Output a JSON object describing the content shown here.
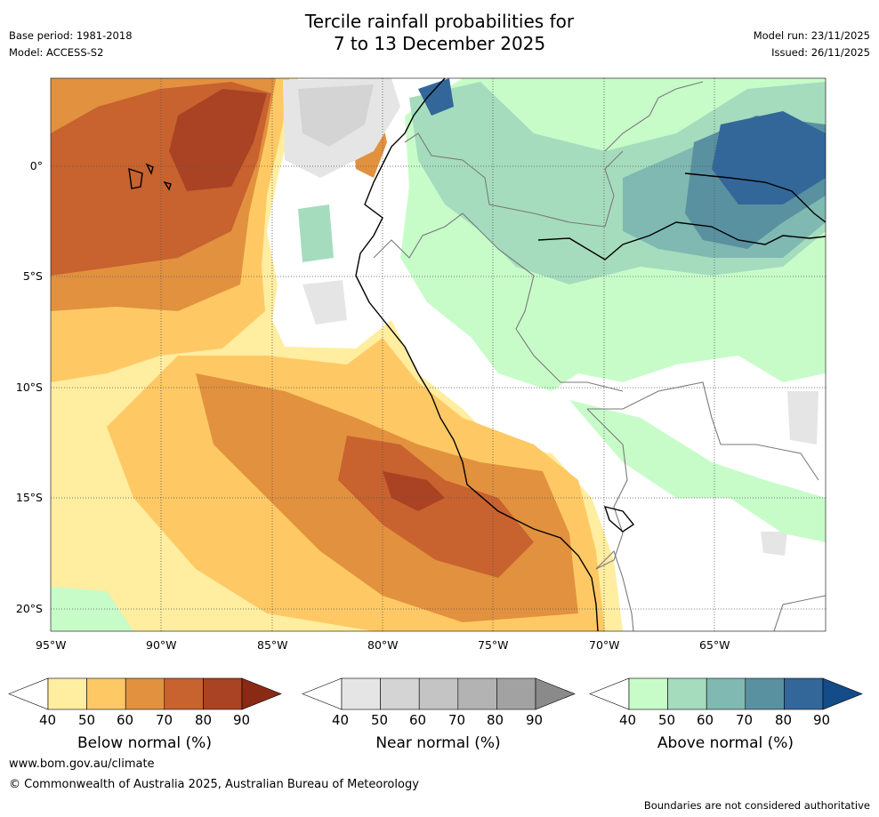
{
  "header": {
    "title_line1": "Tercile rainfall probabilities for",
    "title_line2": "7 to 13 December 2025",
    "base_period": "Base period: 1981-2018",
    "model": "Model: ACCESS-S2",
    "model_run": "Model run: 23/11/2025",
    "issued": "Issued: 26/11/2025"
  },
  "map": {
    "lon_ticks": [
      "95°W",
      "90°W",
      "85°W",
      "80°W",
      "75°W",
      "70°W",
      "65°W"
    ],
    "lat_ticks": [
      "0°",
      "5°S",
      "10°S",
      "15°S",
      "20°S"
    ],
    "extent": {
      "lon_min": -95,
      "lon_max": -60,
      "lat_max": 4,
      "lat_min": -21
    }
  },
  "legend": {
    "below": {
      "label": "Below normal (%)",
      "ticks": [
        "40",
        "50",
        "60",
        "70",
        "80",
        "90"
      ],
      "colors": [
        "#ffffff",
        "#ffeda0",
        "#fec965",
        "#e2913f",
        "#c8622f",
        "#a94323",
        "#8a2a14"
      ]
    },
    "near": {
      "label": "Near normal (%)",
      "ticks": [
        "40",
        "50",
        "60",
        "70",
        "80",
        "90"
      ],
      "colors": [
        "#ffffff",
        "#e5e5e5",
        "#d4d4d4",
        "#c4c4c4",
        "#b3b3b3",
        "#a2a2a2",
        "#8a8a8a"
      ]
    },
    "above": {
      "label": "Above normal (%)",
      "ticks": [
        "40",
        "50",
        "60",
        "70",
        "80",
        "90"
      ],
      "colors": [
        "#ffffff",
        "#c7fcc9",
        "#a5dcbe",
        "#7fb9b1",
        "#5a91a0",
        "#33679a",
        "#134c87"
      ]
    }
  },
  "footer": {
    "url": "www.bom.gov.au/climate",
    "copyright": "© Commonwealth of Australia 2025, Australian Bureau of Meteorology",
    "disclaimer": "Boundaries are not considered authoritative"
  }
}
